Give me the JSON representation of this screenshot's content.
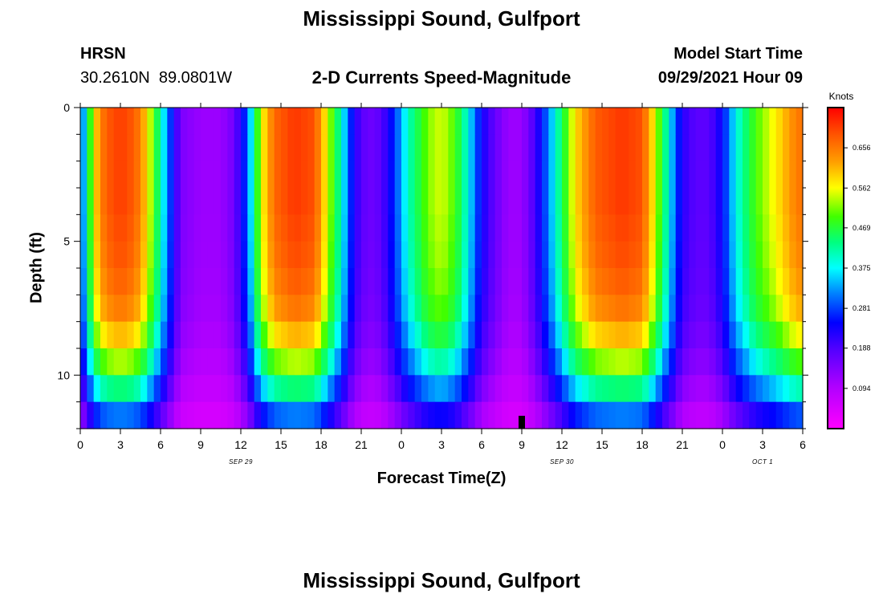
{
  "header": {
    "title": "Mississippi Sound, Gulfport",
    "station_id": "HRSN",
    "coordinates": "30.2610N  89.0801W",
    "subtitle": "2-D Currents Speed-Magnitude",
    "model_label": "Model Start Time",
    "model_time": "09/29/2021 Hour 09",
    "footer_title": "Mississippi Sound, Gulfport"
  },
  "chart_data": {
    "type": "heatmap",
    "title": "2-D Currents Speed-Magnitude",
    "xlabel": "Forecast Time(Z)",
    "ylabel": "Depth (ft)",
    "x_ticks": [
      "0",
      "3",
      "6",
      "9",
      "12",
      "15",
      "18",
      "21",
      "0",
      "3",
      "6",
      "9",
      "12",
      "15",
      "18",
      "21",
      "0",
      "3",
      "6"
    ],
    "x_range_hours": [
      0,
      54
    ],
    "date_labels": [
      {
        "text": "SEP 29",
        "hour": 12
      },
      {
        "text": "SEP 30",
        "hour": 36
      },
      {
        "text": "OCT 1",
        "hour": 51
      }
    ],
    "y_ticks": [
      "0",
      "5",
      "10"
    ],
    "y_range_ft": [
      0,
      12
    ],
    "colorbar": {
      "label": "Knots",
      "ticks": [
        "0.656",
        "0.562",
        "0.469",
        "0.375",
        "0.281",
        "0.188",
        "0.094"
      ],
      "tick_values": [
        0.656,
        0.562,
        0.469,
        0.375,
        0.281,
        0.188,
        0.094
      ],
      "min": 0.0,
      "max": 0.75
    },
    "current_time_marker_hour": 33,
    "depth_layers_ft": [
      0.5,
      1.5,
      2.5,
      3.5,
      4.5,
      5.5,
      6.5,
      7.5,
      8.5,
      9.5,
      10.5,
      11.5
    ],
    "surface_speed_knots": [
      {
        "h": 0,
        "v": 0.26
      },
      {
        "h": 0.5,
        "v": 0.42
      },
      {
        "h": 1,
        "v": 0.56
      },
      {
        "h": 1.5,
        "v": 0.65
      },
      {
        "h": 2.5,
        "v": 0.7
      },
      {
        "h": 3.5,
        "v": 0.7
      },
      {
        "h": 4.5,
        "v": 0.65
      },
      {
        "h": 5.5,
        "v": 0.5
      },
      {
        "h": 6.5,
        "v": 0.32
      },
      {
        "h": 7.5,
        "v": 0.15
      },
      {
        "h": 9,
        "v": 0.12
      },
      {
        "h": 10.5,
        "v": 0.12
      },
      {
        "h": 11.5,
        "v": 0.16
      },
      {
        "h": 12.5,
        "v": 0.3
      },
      {
        "h": 13.5,
        "v": 0.55
      },
      {
        "h": 14.5,
        "v": 0.67
      },
      {
        "h": 16,
        "v": 0.71
      },
      {
        "h": 17.5,
        "v": 0.69
      },
      {
        "h": 18.5,
        "v": 0.55
      },
      {
        "h": 19.5,
        "v": 0.4
      },
      {
        "h": 20.5,
        "v": 0.22
      },
      {
        "h": 21.5,
        "v": 0.16
      },
      {
        "h": 22.5,
        "v": 0.18
      },
      {
        "h": 23.5,
        "v": 0.28
      },
      {
        "h": 24.5,
        "v": 0.4
      },
      {
        "h": 26,
        "v": 0.52
      },
      {
        "h": 27,
        "v": 0.55
      },
      {
        "h": 28,
        "v": 0.5
      },
      {
        "h": 29,
        "v": 0.38
      },
      {
        "h": 30,
        "v": 0.24
      },
      {
        "h": 31,
        "v": 0.17
      },
      {
        "h": 32,
        "v": 0.12
      },
      {
        "h": 33,
        "v": 0.12
      },
      {
        "h": 34,
        "v": 0.2
      },
      {
        "h": 35,
        "v": 0.32
      },
      {
        "h": 36,
        "v": 0.45
      },
      {
        "h": 37,
        "v": 0.58
      },
      {
        "h": 38.5,
        "v": 0.68
      },
      {
        "h": 40.5,
        "v": 0.71
      },
      {
        "h": 42,
        "v": 0.69
      },
      {
        "h": 43,
        "v": 0.55
      },
      {
        "h": 44,
        "v": 0.38
      },
      {
        "h": 45,
        "v": 0.22
      },
      {
        "h": 46,
        "v": 0.18
      },
      {
        "h": 47,
        "v": 0.18
      },
      {
        "h": 48,
        "v": 0.25
      },
      {
        "h": 49,
        "v": 0.38
      },
      {
        "h": 50.5,
        "v": 0.5
      },
      {
        "h": 52,
        "v": 0.57
      },
      {
        "h": 53.5,
        "v": 0.65
      },
      {
        "h": 54,
        "v": 0.66
      }
    ],
    "depth_factor": [
      1.0,
      1.0,
      1.0,
      1.0,
      0.99,
      0.98,
      0.96,
      0.93,
      0.86,
      0.76,
      0.62,
      0.45
    ]
  }
}
